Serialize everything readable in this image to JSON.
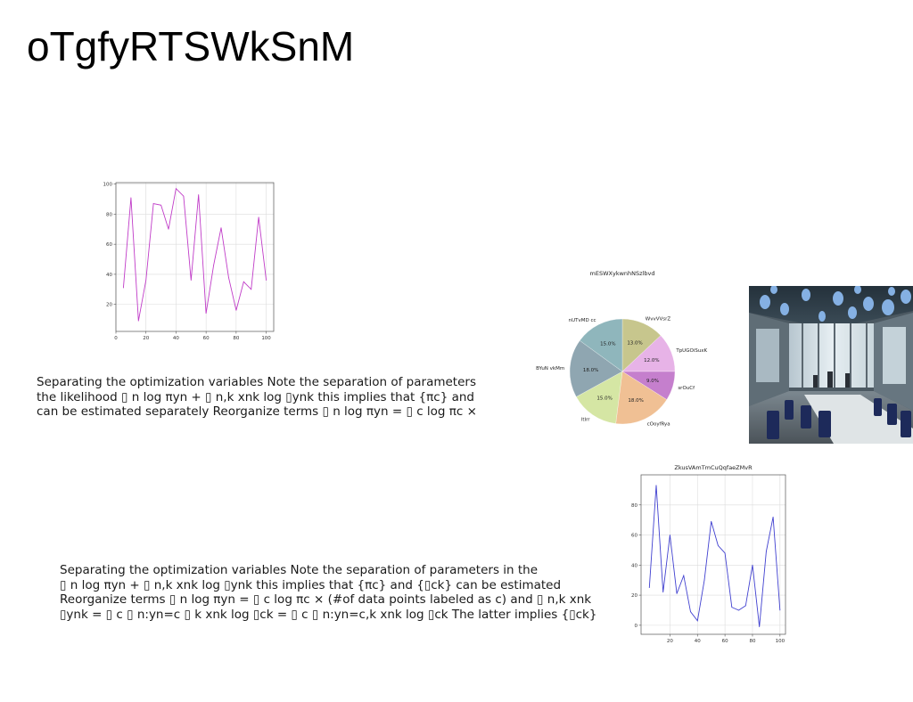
{
  "page": {
    "title": "oTgfyRTSWkSnM",
    "paragraph_1": "Separating the optimization variables Note the separation of parameters\nthe likelihood ▯ n log πyn + ▯ n,k xnk log ▯ynk this implies that {πc} and\ncan be estimated separately Reorganize terms ▯ n log πyn = ▯ c log πc ×",
    "paragraph_2": "Separating the optimization variables Note the separation of parameters in the\n▯ n log πyn + ▯ n,k xnk log ▯ynk this implies that {πc} and {▯ck} can be estimated\nReorganize terms ▯ n log πyn = ▯ c log πc × (#of data points labeled as c) and ▯ n,k xnk\n▯ynk = ▯ c ▯ n:yn=c ▯ k xnk log ▯ck = ▯ c ▯ n:yn=c,k xnk log ▯ck The latter implies {▯ck}"
  },
  "photo": {
    "subject": "open-plan office interior with blue pendant lights"
  },
  "chart_data": [
    {
      "type": "line",
      "title": "",
      "xlabel": "",
      "ylabel": "",
      "color": "#c03cc8",
      "xlim": [
        0,
        105
      ],
      "ylim": [
        2,
        101
      ],
      "xticks": [
        0,
        20,
        40,
        60,
        80,
        100
      ],
      "yticks": [
        20,
        40,
        60,
        80,
        100
      ],
      "grid": true,
      "x": [
        5,
        10,
        15,
        20,
        25,
        30,
        35,
        40,
        45,
        50,
        55,
        60,
        65,
        70,
        75,
        80,
        85,
        90,
        95,
        100
      ],
      "y": [
        31,
        91,
        9,
        36,
        87,
        86,
        70,
        97,
        92,
        36,
        93,
        14,
        46,
        71,
        38,
        16,
        35,
        30,
        78,
        36
      ]
    },
    {
      "type": "pie",
      "title": "mESWXykwnhNSzlbvd",
      "labels": [
        "WvvVVsrZ",
        "TpUGOiSuxK",
        "srOuCf",
        "cOoyfRya",
        "ltlrr",
        "BYuN vkMm",
        "nUTvMD cc"
      ],
      "values": [
        13.0,
        12.0,
        9.0,
        18.0,
        15.0,
        18.0,
        15.0
      ],
      "autopct_labels": [
        "13.0%",
        "12.0%",
        "9.0%",
        "18.0%",
        "15.0%",
        "18.0%",
        "15.0%"
      ],
      "colors": [
        "#c7c68d",
        "#e7b3e7",
        "#c57fcd",
        "#f0c094",
        "#d5e6a4",
        "#8fa6b1",
        "#8fb6bc"
      ]
    },
    {
      "type": "line",
      "title": "ZkusVAmTmCuQqfaeZMvR",
      "xlabel": "",
      "ylabel": "",
      "color": "#4040d0",
      "xlim": [
        -1,
        104
      ],
      "ylim": [
        -6,
        100
      ],
      "xticks": [
        20,
        40,
        60,
        80,
        100
      ],
      "yticks": [
        0,
        20,
        40,
        60,
        80
      ],
      "grid": true,
      "x": [
        5,
        10,
        15,
        20,
        25,
        30,
        35,
        40,
        45,
        50,
        55,
        60,
        65,
        70,
        75,
        80,
        85,
        90,
        95,
        100
      ],
      "y": [
        25,
        93,
        22,
        60,
        21,
        33,
        9,
        3,
        30,
        69,
        53,
        48,
        12,
        10,
        13,
        40,
        -1,
        49,
        72,
        10
      ]
    }
  ]
}
